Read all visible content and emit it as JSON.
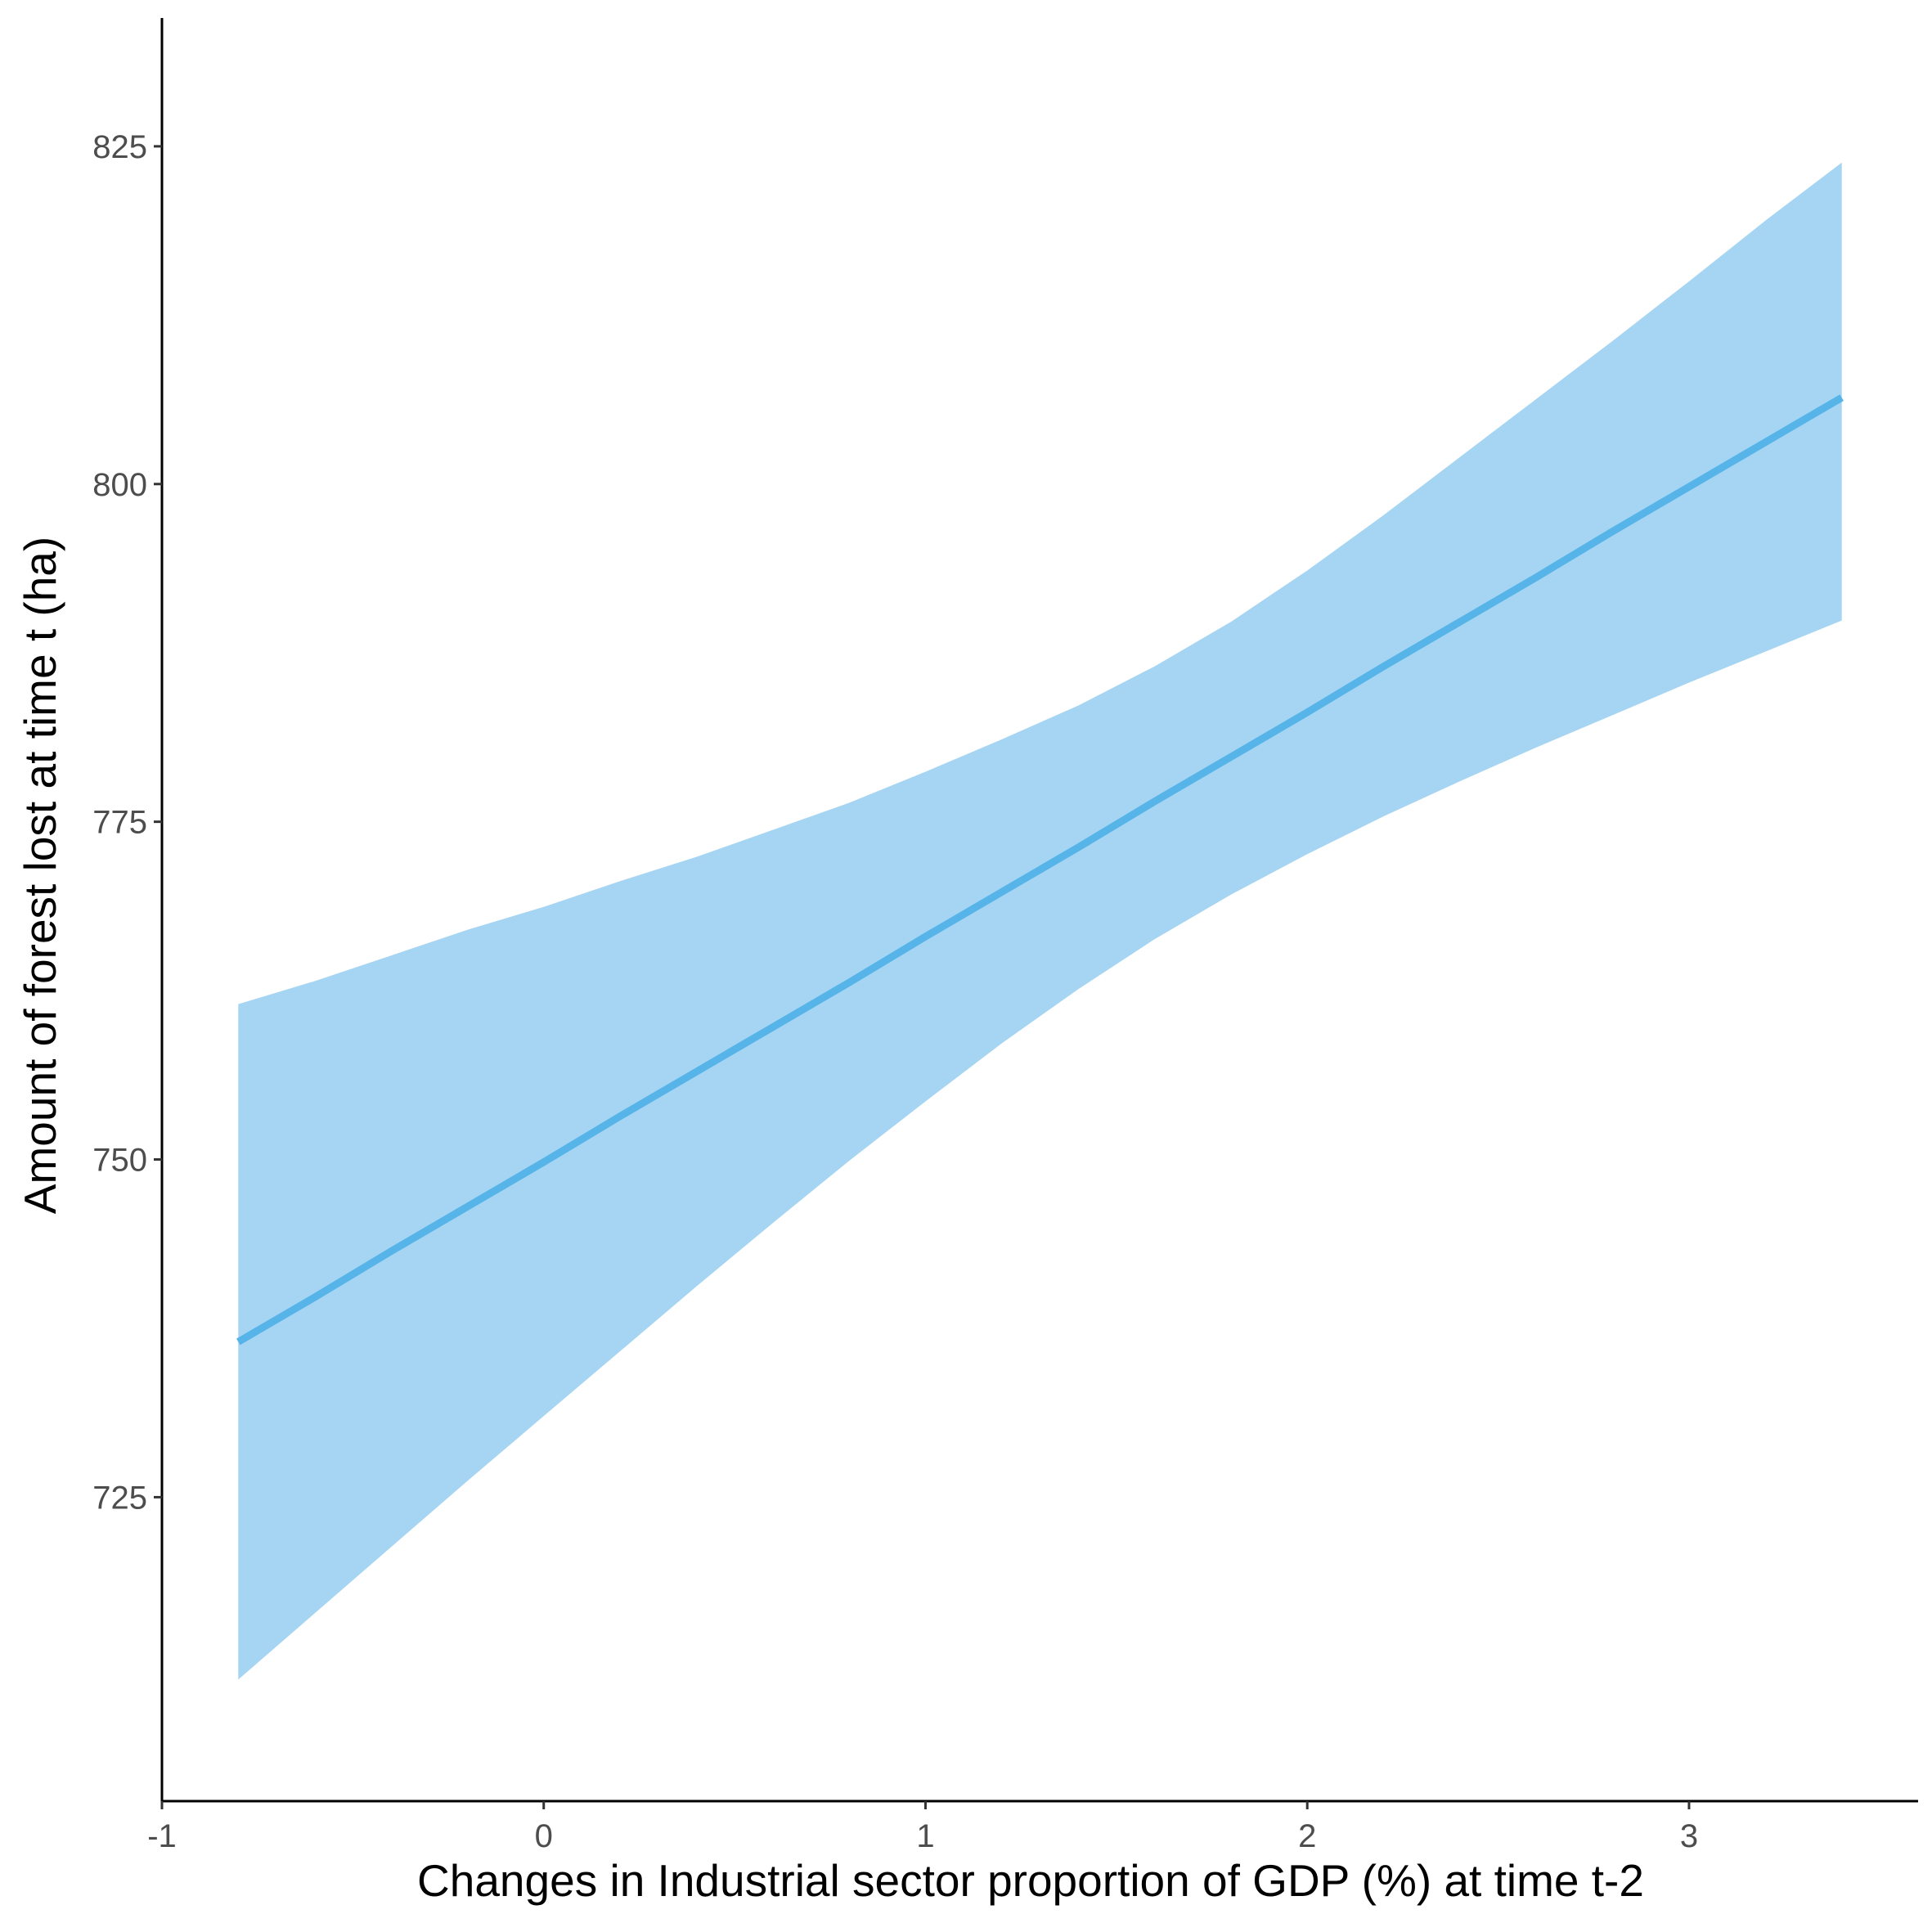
{
  "chart_data": {
    "type": "line",
    "title": "",
    "xlabel": "Changes in Industrial sector proportion of GDP (%) at time t-2",
    "ylabel": "Amount of forest lost at time t (ha)",
    "xlim": [
      -1.0,
      3.6
    ],
    "ylim": [
      702.5,
      834.5
    ],
    "x_ticks": [
      -1,
      0,
      1,
      2,
      3
    ],
    "y_ticks": [
      725,
      750,
      775,
      800,
      825
    ],
    "x_tick_labels": [
      "-1",
      "0",
      "1",
      "2",
      "3"
    ],
    "y_tick_labels": [
      "725",
      "750",
      "775",
      "800",
      "825"
    ],
    "grid": false,
    "legend": "none",
    "series": [
      {
        "x": [
          -0.8,
          -0.6,
          -0.4,
          -0.2,
          0.0,
          0.2,
          0.4,
          0.6,
          0.8,
          1.0,
          1.2,
          1.4,
          1.6,
          1.8,
          2.0,
          2.2,
          2.4,
          2.6,
          2.8,
          3.0,
          3.2,
          3.4
        ],
        "y": [
          736.5,
          739.8,
          743.2,
          746.5,
          749.8,
          753.2,
          756.5,
          759.8,
          763.1,
          766.5,
          769.8,
          773.1,
          776.5,
          779.8,
          783.1,
          786.5,
          789.8,
          793.1,
          796.5,
          799.8,
          803.1,
          806.4
        ],
        "lower": [
          711.5,
          716.4,
          721.3,
          726.2,
          731.0,
          735.8,
          740.6,
          745.3,
          749.9,
          754.3,
          758.6,
          762.6,
          766.3,
          769.6,
          772.6,
          775.4,
          778.0,
          780.5,
          782.9,
          785.3,
          787.6,
          789.9
        ],
        "upper": [
          761.5,
          763.2,
          765.1,
          767.0,
          768.7,
          770.6,
          772.4,
          774.4,
          776.4,
          778.7,
          781.1,
          783.6,
          786.5,
          789.8,
          793.6,
          797.7,
          802.0,
          806.3,
          810.6,
          815.0,
          819.5,
          823.8
        ]
      }
    ],
    "colors": {
      "line": "#56b4e9",
      "band": "#a5d5f2",
      "axis": "#000000",
      "tick_text": "#4d4d4d"
    }
  }
}
